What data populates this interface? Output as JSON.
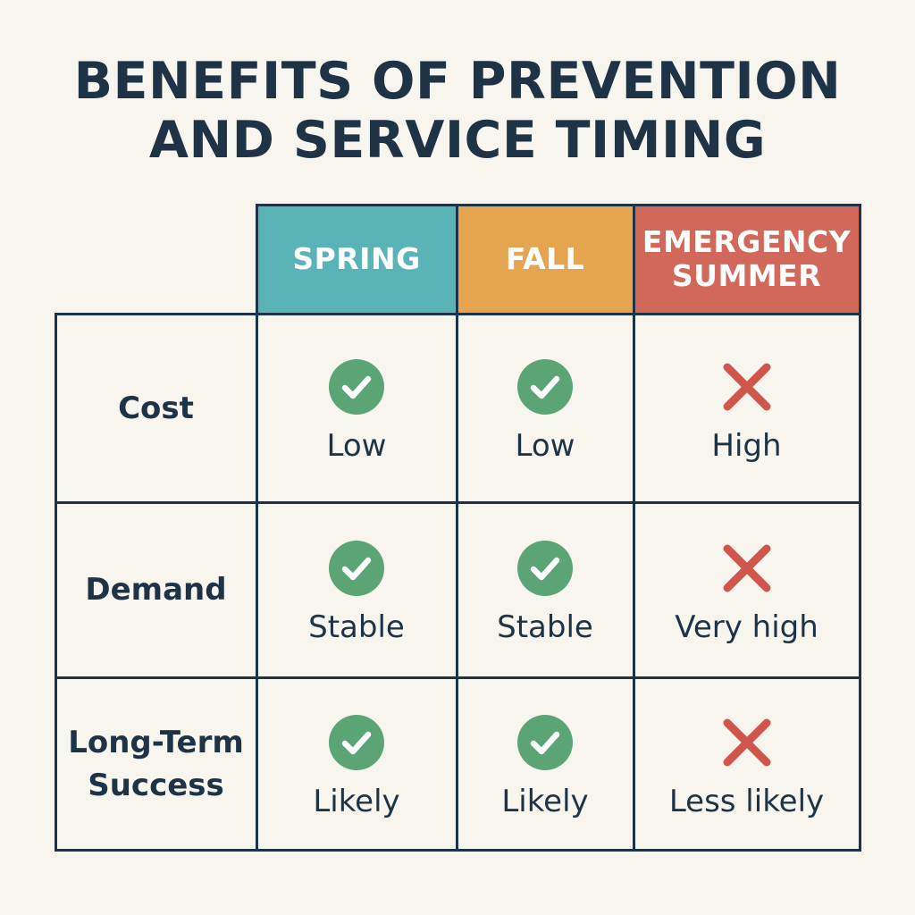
{
  "title": {
    "line1": "BENEFITS OF PREVENTION",
    "line2": "AND SERVICE TIMING"
  },
  "columns": [
    {
      "label": "SPRING",
      "color": "#5ab4b7"
    },
    {
      "label": "FALL",
      "color": "#e5a44f"
    },
    {
      "label": "EMERGENCY SUMMER",
      "color": "#d1685a"
    }
  ],
  "rows": [
    {
      "label": "Cost",
      "cells": [
        {
          "status": "check",
          "icon": "check-circle-icon",
          "text": "Low"
        },
        {
          "status": "check",
          "icon": "check-circle-icon",
          "text": "Low"
        },
        {
          "status": "cross",
          "icon": "x-mark-icon",
          "text": "High"
        }
      ]
    },
    {
      "label": "Demand",
      "cells": [
        {
          "status": "check",
          "icon": "check-circle-icon",
          "text": "Stable"
        },
        {
          "status": "check",
          "icon": "check-circle-icon",
          "text": "Stable"
        },
        {
          "status": "cross",
          "icon": "x-mark-icon",
          "text": "Very high"
        }
      ]
    },
    {
      "label": "Long-Term Success",
      "cells": [
        {
          "status": "check",
          "icon": "check-circle-icon",
          "text": "Likely"
        },
        {
          "status": "check",
          "icon": "check-circle-icon",
          "text": "Likely"
        },
        {
          "status": "cross",
          "icon": "x-mark-icon",
          "text": "Less likely"
        }
      ]
    }
  ],
  "colors": {
    "check": "#5aa573",
    "cross": "#d0554a",
    "text": "#1f3347",
    "background": "#f8f5ef"
  }
}
